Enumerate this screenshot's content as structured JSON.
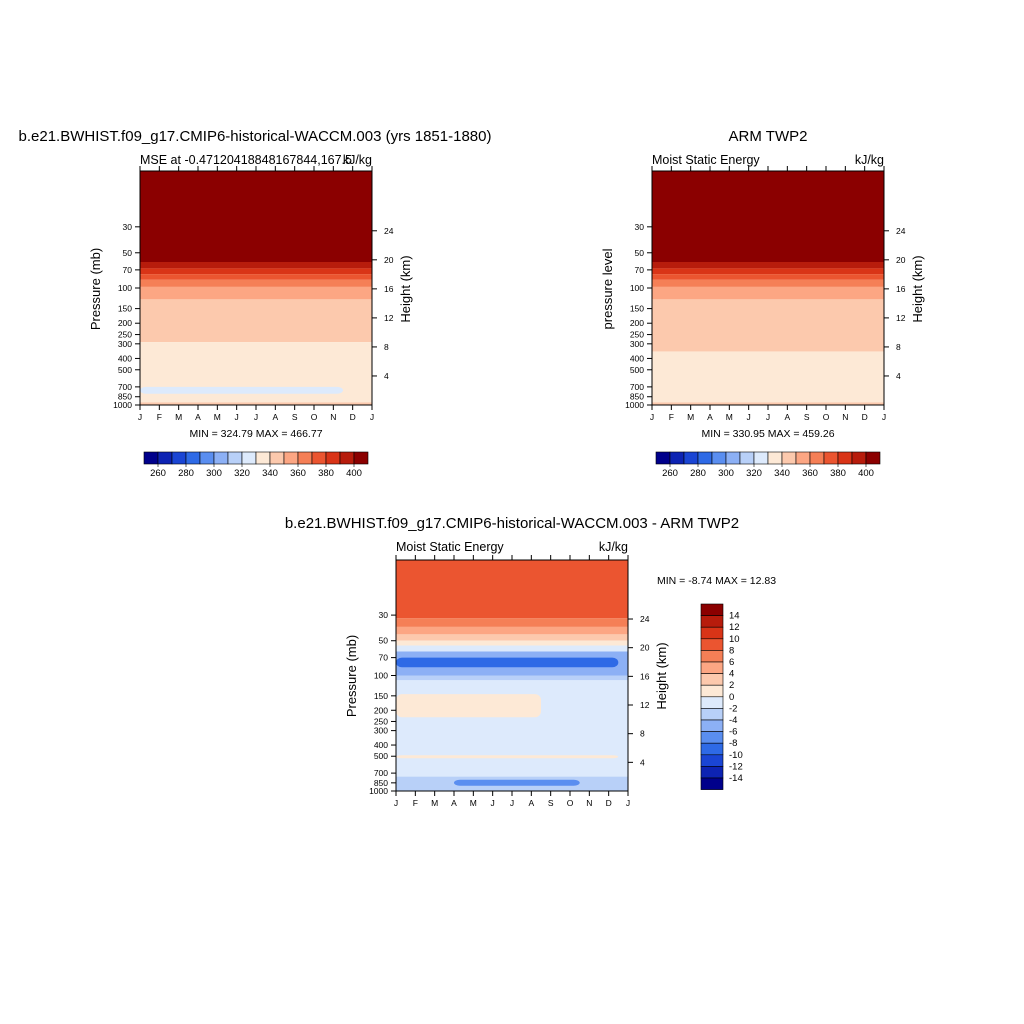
{
  "colors": {
    "mse_scale": [
      "#00008b",
      "#0d23b3",
      "#1a45d4",
      "#2e6ae6",
      "#5a8ef0",
      "#8cb0f5",
      "#b8d0f8",
      "#ddeafc",
      "#fde9d6",
      "#fcc9ad",
      "#fca683",
      "#f57f56",
      "#eb5530",
      "#d93417",
      "#b71c0c",
      "#8b0000"
    ],
    "diff_scale": [
      "#00008b",
      "#0d23b3",
      "#1a45d4",
      "#2e6ae6",
      "#5a8ef0",
      "#8cb0f5",
      "#b8d0f8",
      "#ddeafc",
      "#fde9d6",
      "#fcc9ad",
      "#fca683",
      "#f57f56",
      "#eb5530",
      "#d93417",
      "#b71c0c",
      "#8b0000"
    ]
  },
  "chart_data": [
    {
      "type": "heatmap",
      "title": "b.e21.BWHIST.f09_g17.CMIP6-historical-WACCM.003 (yrs 1851-1880)",
      "left_subtitle": "MSE at -0.47120418848167844,167.5",
      "right_subtitle": "kJ/kg",
      "ylabel": "Pressure (mb)",
      "y2label": "Height (km)",
      "x_ticks": [
        "J",
        "F",
        "M",
        "A",
        "M",
        "J",
        "J",
        "A",
        "S",
        "O",
        "N",
        "D",
        "J"
      ],
      "y_ticks": [
        "30",
        "50",
        "70",
        "100",
        "150",
        "200",
        "250",
        "300",
        "400",
        "500",
        "700",
        "850",
        "1000"
      ],
      "y2_ticks": [
        "24",
        "20",
        "16",
        "12",
        "8",
        "4"
      ],
      "stats": "MIN = 324.79 MAX = 466.77",
      "colorbar": {
        "orientation": "horizontal",
        "labels": [
          "260",
          "280",
          "300",
          "320",
          "340",
          "360",
          "380",
          "400"
        ]
      },
      "levels": [
        {
          "bin": 15,
          "pressure_mb": [
            10,
            60
          ]
        },
        {
          "bin": 14,
          "pressure_mb": [
            60,
            68
          ]
        },
        {
          "bin": 13,
          "pressure_mb": [
            68,
            76
          ]
        },
        {
          "bin": 12,
          "pressure_mb": [
            76,
            85
          ]
        },
        {
          "bin": 11,
          "pressure_mb": [
            85,
            98
          ]
        },
        {
          "bin": 10,
          "pressure_mb": [
            98,
            125
          ]
        },
        {
          "bin": 9,
          "pressure_mb": [
            125,
            290
          ]
        },
        {
          "bin": 8,
          "pressure_mb": [
            290,
            950
          ]
        },
        {
          "bin": 7,
          "pressure_mb": [
            700,
            800
          ],
          "months": [
            "J",
            "J",
            "A",
            "S",
            "O",
            "N"
          ]
        },
        {
          "bin": 9,
          "pressure_mb": [
            950,
            1000
          ]
        }
      ]
    },
    {
      "type": "heatmap",
      "title": "ARM TWP2",
      "left_subtitle": "Moist Static Energy",
      "right_subtitle": "kJ/kg",
      "ylabel": "pressure level",
      "y2label": "Height (km)",
      "x_ticks": [
        "J",
        "F",
        "M",
        "A",
        "M",
        "J",
        "J",
        "A",
        "S",
        "O",
        "N",
        "D",
        "J"
      ],
      "y_ticks": [
        "30",
        "50",
        "70",
        "100",
        "150",
        "200",
        "250",
        "300",
        "400",
        "500",
        "700",
        "850",
        "1000"
      ],
      "y2_ticks": [
        "24",
        "20",
        "16",
        "12",
        "8",
        "4"
      ],
      "stats": "MIN = 330.95 MAX = 459.26",
      "colorbar": {
        "orientation": "horizontal",
        "labels": [
          "260",
          "280",
          "300",
          "320",
          "340",
          "360",
          "380",
          "400"
        ]
      },
      "levels": [
        {
          "bin": 15,
          "pressure_mb": [
            10,
            60
          ]
        },
        {
          "bin": 14,
          "pressure_mb": [
            60,
            68
          ]
        },
        {
          "bin": 13,
          "pressure_mb": [
            68,
            76
          ]
        },
        {
          "bin": 12,
          "pressure_mb": [
            76,
            85
          ]
        },
        {
          "bin": 11,
          "pressure_mb": [
            85,
            98
          ]
        },
        {
          "bin": 10,
          "pressure_mb": [
            98,
            125
          ]
        },
        {
          "bin": 9,
          "pressure_mb": [
            125,
            350
          ]
        },
        {
          "bin": 8,
          "pressure_mb": [
            350,
            950
          ]
        },
        {
          "bin": 9,
          "pressure_mb": [
            950,
            1000
          ]
        }
      ]
    },
    {
      "type": "heatmap",
      "title": "b.e21.BWHIST.f09_g17.CMIP6-historical-WACCM.003 - ARM TWP2",
      "left_subtitle": "Moist Static Energy",
      "right_subtitle": "kJ/kg",
      "ylabel": "Pressure (mb)",
      "y2label": "Height (km)",
      "x_ticks": [
        "J",
        "F",
        "M",
        "A",
        "M",
        "J",
        "J",
        "A",
        "S",
        "O",
        "N",
        "D",
        "J"
      ],
      "y_ticks": [
        "30",
        "50",
        "70",
        "100",
        "150",
        "200",
        "250",
        "300",
        "400",
        "500",
        "700",
        "850",
        "1000"
      ],
      "y2_ticks": [
        "24",
        "20",
        "16",
        "12",
        "8",
        "4"
      ],
      "stats": "MIN =  -8.74 MAX =  12.83",
      "colorbar": {
        "orientation": "vertical",
        "labels": [
          "14",
          "12",
          "10",
          "8",
          "6",
          "4",
          "2",
          "0",
          "-2",
          "-4",
          "-6",
          "-8",
          "-10",
          "-12",
          "-14"
        ]
      },
      "levels": [
        {
          "bin": 12,
          "pressure_mb": [
            10,
            32
          ]
        },
        {
          "bin": 11,
          "pressure_mb": [
            32,
            38
          ]
        },
        {
          "bin": 10,
          "pressure_mb": [
            38,
            44
          ]
        },
        {
          "bin": 9,
          "pressure_mb": [
            44,
            50
          ]
        },
        {
          "bin": 8,
          "pressure_mb": [
            50,
            55
          ]
        },
        {
          "bin": 7,
          "pressure_mb": [
            55,
            62
          ]
        },
        {
          "bin": 5,
          "pressure_mb": [
            62,
            100
          ]
        },
        {
          "bin": 3,
          "pressure_mb": [
            70,
            85
          ],
          "months": [
            "J",
            "F",
            "M",
            "A",
            "N",
            "D"
          ]
        },
        {
          "bin": 6,
          "pressure_mb": [
            100,
            110
          ]
        },
        {
          "bin": 7,
          "pressure_mb": [
            110,
            750
          ]
        },
        {
          "bin": 8,
          "pressure_mb": [
            145,
            230
          ],
          "months": [
            "J",
            "A"
          ]
        },
        {
          "bin": 8,
          "pressure_mb": [
            490,
            520
          ],
          "months": [
            "J",
            "M",
            "J",
            "D"
          ]
        },
        {
          "bin": 6,
          "pressure_mb": [
            750,
            1000
          ]
        },
        {
          "bin": 4,
          "pressure_mb": [
            800,
            900
          ],
          "months": [
            "A",
            "M",
            "A",
            "S",
            "O"
          ]
        }
      ]
    }
  ]
}
